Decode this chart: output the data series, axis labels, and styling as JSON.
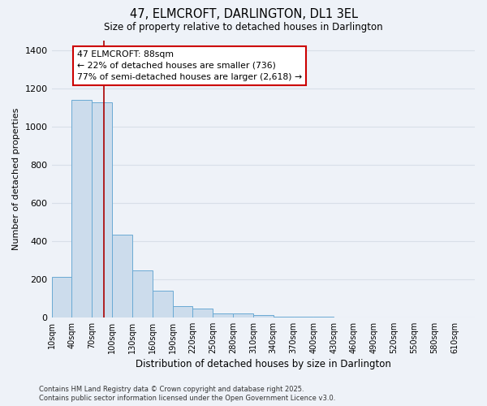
{
  "title": "47, ELMCROFT, DARLINGTON, DL1 3EL",
  "subtitle": "Size of property relative to detached houses in Darlington",
  "xlabel": "Distribution of detached houses by size in Darlington",
  "ylabel": "Number of detached properties",
  "bar_color": "#ccdcec",
  "bar_edge_color": "#6aaad4",
  "background_color": "#eef2f8",
  "grid_color": "#d8dfe8",
  "vline_x": 88,
  "vline_color": "#aa0000",
  "categories": [
    "10sqm",
    "40sqm",
    "70sqm",
    "100sqm",
    "130sqm",
    "160sqm",
    "190sqm",
    "220sqm",
    "250sqm",
    "280sqm",
    "310sqm",
    "340sqm",
    "370sqm",
    "400sqm",
    "430sqm",
    "460sqm",
    "490sqm",
    "520sqm",
    "550sqm",
    "580sqm",
    "610sqm"
  ],
  "values": [
    210,
    1140,
    1125,
    435,
    245,
    140,
    60,
    45,
    22,
    20,
    10,
    5,
    5,
    2,
    1,
    0,
    0,
    0,
    0,
    0,
    0
  ],
  "ylim": [
    0,
    1450
  ],
  "yticks": [
    0,
    200,
    400,
    600,
    800,
    1000,
    1200,
    1400
  ],
  "annotation_title": "47 ELMCROFT: 88sqm",
  "annotation_line1": "← 22% of detached houses are smaller (736)",
  "annotation_line2": "77% of semi-detached houses are larger (2,618) →",
  "annotation_box_color": "#ffffff",
  "annotation_box_edge": "#cc0000",
  "footnote1": "Contains HM Land Registry data © Crown copyright and database right 2025.",
  "footnote2": "Contains public sector information licensed under the Open Government Licence v3.0."
}
